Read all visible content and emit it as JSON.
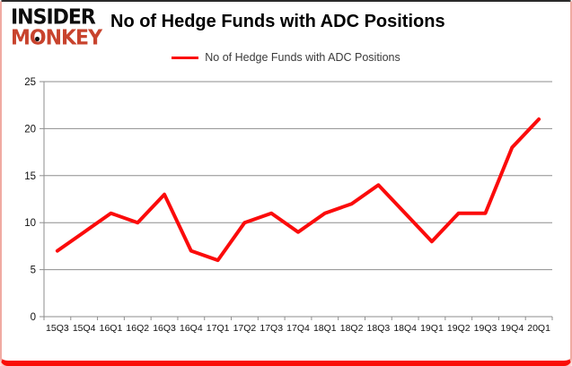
{
  "brand": {
    "name": "Insider Monkey",
    "line1": "INSIDER",
    "line2": "MONKEY",
    "red": "#c8432d"
  },
  "header": {
    "title": "No of Hedge Funds with ADC Positions"
  },
  "legend": {
    "label": "No of Hedge Funds with ADC Positions",
    "line_color": "#fb0b0b"
  },
  "chart_data": {
    "type": "line",
    "title": "No of Hedge Funds with ADC Positions",
    "categories": [
      "15Q3",
      "15Q4",
      "16Q1",
      "16Q2",
      "16Q3",
      "16Q4",
      "17Q1",
      "17Q2",
      "17Q3",
      "17Q4",
      "18Q1",
      "18Q2",
      "18Q3",
      "18Q4",
      "19Q1",
      "19Q2",
      "19Q3",
      "19Q4",
      "20Q1"
    ],
    "series": [
      {
        "name": "No of Hedge Funds with ADC Positions",
        "color": "#fb0b0b",
        "values": [
          7,
          9,
          11,
          10,
          13,
          7,
          6,
          10,
          11,
          9,
          11,
          12,
          14,
          11,
          8,
          11,
          11,
          18,
          21
        ]
      }
    ],
    "xlabel": "",
    "ylabel": "",
    "ylim": [
      0,
      25
    ],
    "yticks": [
      0,
      5,
      10,
      15,
      20,
      25
    ],
    "grid": true,
    "gridline_color": "#8e8e8e",
    "axis_text_color": "#111111",
    "legend_position": "top-center"
  }
}
